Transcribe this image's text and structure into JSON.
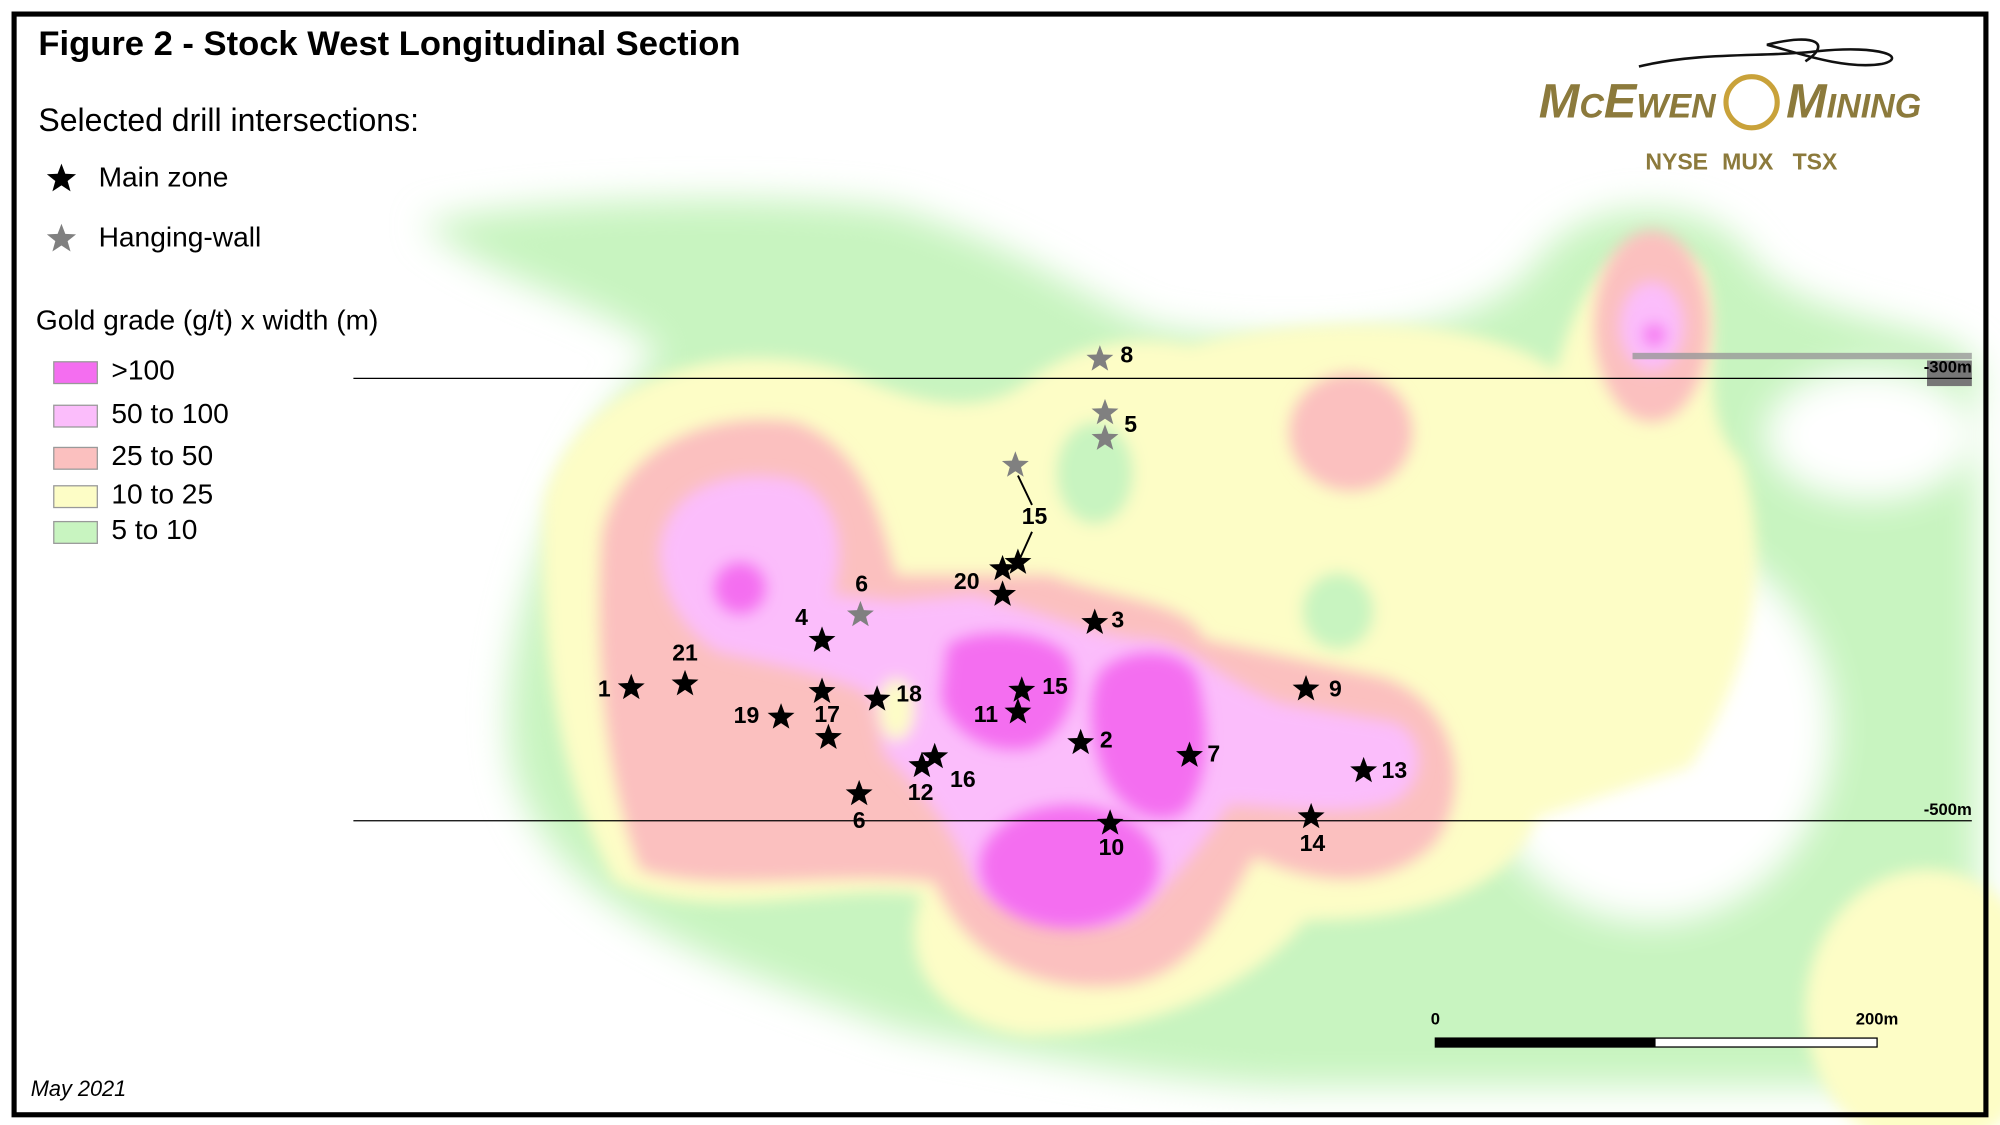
{
  "title": "Figure 2 - Stock West Longitudinal Section",
  "legend": {
    "heading": "Selected drill intersections:",
    "items": [
      {
        "label": "Main zone",
        "color": "#000000"
      },
      {
        "label": "Hanging-wall",
        "color": "#808080"
      }
    ]
  },
  "grade_legend": {
    "heading": "Gold grade (g/t) x width (m)",
    "classes": [
      {
        "label": ">100",
        "color": "#f46ef0"
      },
      {
        "label": "50 to 100",
        "color": "#fbbdfb"
      },
      {
        "label": "25 to 50",
        "color": "#fbc0bf"
      },
      {
        "label": "10 to 25",
        "color": "#fdfdc6"
      },
      {
        "label": "5 to 10",
        "color": "#c8f4c0"
      }
    ]
  },
  "logo": {
    "name_1": "McEwen",
    "name_2": "Mining",
    "exchanges": [
      "NYSE",
      "MUX",
      "TSX"
    ]
  },
  "levels": [
    "-300m",
    "-500m"
  ],
  "scale_bar": {
    "start": "0",
    "end": "200m"
  },
  "date": "May 2021",
  "holes": [
    {
      "label": "8",
      "zone": 1
    },
    {
      "label": "5",
      "zone": 1
    },
    {
      "label": "15",
      "zone": 1
    },
    {
      "label": "20",
      "zone": 0
    },
    {
      "label": "3",
      "zone": 0
    },
    {
      "label": "6",
      "zone": 1
    },
    {
      "label": "4",
      "zone": 0
    },
    {
      "label": "21",
      "zone": 0
    },
    {
      "label": "1",
      "zone": 0
    },
    {
      "label": "9",
      "zone": 0
    },
    {
      "label": "15",
      "zone": 0
    },
    {
      "label": "11",
      "zone": 0
    },
    {
      "label": "18",
      "zone": 0
    },
    {
      "label": "19",
      "zone": 0
    },
    {
      "label": "17",
      "zone": 0
    },
    {
      "label": "2",
      "zone": 0
    },
    {
      "label": "7",
      "zone": 0
    },
    {
      "label": "13",
      "zone": 0
    },
    {
      "label": "12",
      "zone": 0
    },
    {
      "label": "16",
      "zone": 0
    },
    {
      "label": "6",
      "zone": 0
    },
    {
      "label": "10",
      "zone": 0
    },
    {
      "label": "14",
      "zone": 0
    }
  ]
}
